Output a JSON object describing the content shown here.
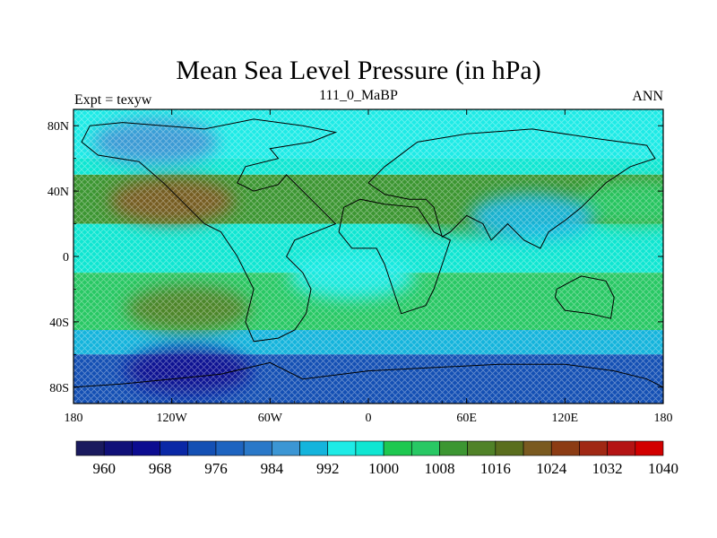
{
  "header": {
    "title": "Mean Sea Level Pressure (in hPa)",
    "left": "Expt = texyw",
    "center": "111_0_MaBP",
    "right": "ANN"
  },
  "chart_data": {
    "type": "heatmap",
    "title": "Mean Sea Level Pressure (in hPa)",
    "projection": "cylindrical-equidistant",
    "xlim": [
      -180,
      180
    ],
    "ylim": [
      -90,
      90
    ],
    "x_ticks": [
      {
        "value": -180,
        "label": "180"
      },
      {
        "value": -120,
        "label": "120W"
      },
      {
        "value": -60,
        "label": "60W"
      },
      {
        "value": 0,
        "label": "0"
      },
      {
        "value": 60,
        "label": "60E"
      },
      {
        "value": 120,
        "label": "120E"
      },
      {
        "value": 180,
        "label": "180"
      }
    ],
    "y_ticks": [
      {
        "value": 80,
        "label": "80N"
      },
      {
        "value": 40,
        "label": "40N"
      },
      {
        "value": 0,
        "label": "0"
      },
      {
        "value": -40,
        "label": "40S"
      },
      {
        "value": -80,
        "label": "80S"
      }
    ],
    "colorbar": {
      "levels": [
        960,
        964,
        968,
        972,
        976,
        980,
        984,
        988,
        992,
        996,
        1000,
        1004,
        1008,
        1012,
        1016,
        1020,
        1024,
        1028,
        1032,
        1036,
        1040
      ],
      "labels": [
        "960",
        "968",
        "976",
        "984",
        "992",
        "1000",
        "1008",
        "1016",
        "1024",
        "1032",
        "1040"
      ],
      "colors": [
        "#1a1a5e",
        "#101078",
        "#0c0c90",
        "#0a28a6",
        "#1450b4",
        "#1e64c0",
        "#2a78c8",
        "#3c96d4",
        "#14b4dc",
        "#1eebe6",
        "#0fe6d2",
        "#1ec850",
        "#28c864",
        "#3c9632",
        "#508228",
        "#5a6e1e",
        "#7a5a20",
        "#8c3c14",
        "#a02814",
        "#b41414",
        "#d20000"
      ]
    },
    "bands": [
      {
        "lat": [
          60,
          90
        ],
        "value": 996
      },
      {
        "lat": [
          50,
          60
        ],
        "value": 1000
      },
      {
        "lat": [
          20,
          50
        ],
        "value": 1012
      },
      {
        "lat": [
          -10,
          20
        ],
        "value": 1002
      },
      {
        "lat": [
          -45,
          -10
        ],
        "value": 1010
      },
      {
        "lat": [
          -60,
          -45
        ],
        "value": 992
      },
      {
        "lat": [
          -90,
          -60
        ],
        "value": 978
      }
    ],
    "highs": [
      {
        "lon": -120,
        "lat": 34,
        "value": 1024
      },
      {
        "lon": -110,
        "lat": -32,
        "value": 1018
      },
      {
        "lon": 60,
        "lat": 28,
        "value": 1012
      },
      {
        "lon": 165,
        "lat": 32,
        "value": 1010
      }
    ],
    "lows": [
      {
        "lon": 100,
        "lat": 24,
        "value": 994
      },
      {
        "lon": -110,
        "lat": -70,
        "value": 968
      },
      {
        "lon": -130,
        "lat": 70,
        "value": 988
      },
      {
        "lon": -10,
        "lat": -12,
        "value": 996
      }
    ],
    "grid": false
  }
}
